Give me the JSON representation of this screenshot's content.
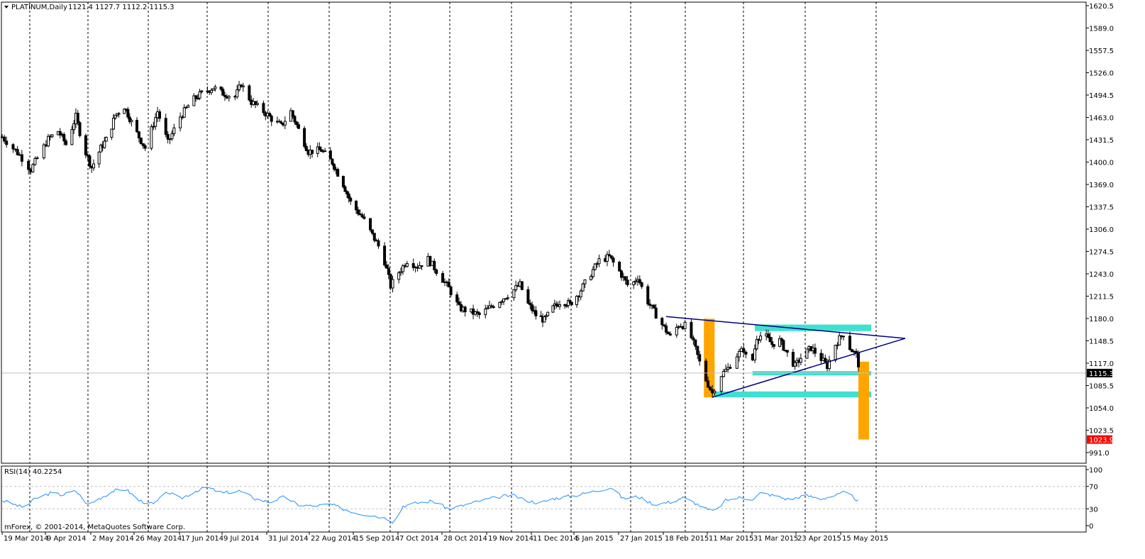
{
  "header": {
    "symbol_label": "PLATINUM,Daily",
    "ohlc_label": "1121.4 1127.7 1112.2 1115.3",
    "dropdown_icon": "triangle-down-icon"
  },
  "footer": {
    "copyright": "mForex, © 2001-2014, MetaQuotes Software Corp."
  },
  "colors": {
    "background": "#ffffff",
    "frame": "#000000",
    "candle": "#000000",
    "grid": "#000000",
    "trendline": "#000080",
    "horizontal_line": "#ff0000",
    "bid_line": "#c0c0c0",
    "zone_rect": "#40e0d0",
    "measure_bar": "#ffa500",
    "rsi_line": "#1e90ff",
    "rsi_level": "#c0c0c0",
    "price_tag": "#000000",
    "level_tag": "#ff0000"
  },
  "chart_data": [
    {
      "type": "candlestick",
      "title": "PLATINUM,Daily",
      "ylim": [
        991.0,
        1620.5
      ],
      "y_ticks": [
        "1620.5",
        "1589.0",
        "1557.5",
        "1526.0",
        "1494.5",
        "1463.0",
        "1431.5",
        "1400.0",
        "1369.0",
        "1337.5",
        "1306.0",
        "1274.5",
        "1243.0",
        "1211.5",
        "1180.0",
        "1148.5",
        "1117.0",
        "1085.5",
        "1054.0",
        "1023.5",
        "991.0"
      ],
      "x_ticks": [
        "19 Mar 2014",
        "9 Apr 2014",
        "2 May 2014",
        "26 May 2014",
        "17 Jun 2014",
        "9 Jul 2014",
        "31 Jul 2014",
        "22 Aug 2014",
        "15 Sep 2014",
        "7 Oct 2014",
        "28 Oct 2014",
        "19 Nov 2014",
        "11 Dec 2014",
        "5 Jan 2015",
        "27 Jan 2015",
        "18 Feb 2015",
        "11 Mar 2015",
        "31 Mar 2015",
        "23 Apr 2015",
        "15 May 2015"
      ],
      "grid": "vertical dashed",
      "last_price": 1115.3,
      "last_price_label": "1115.3",
      "horizontal_level": 1023.9,
      "horizontal_level_label": "1023.9",
      "close_path": [
        {
          "d": "19 Mar 2014",
          "c": 1440
        },
        {
          "d": "27 Mar 2014",
          "c": 1415
        },
        {
          "d": "1 Apr 2014",
          "c": 1395
        },
        {
          "d": "9 Apr 2014",
          "c": 1437
        },
        {
          "d": "14 Apr 2014",
          "c": 1448
        },
        {
          "d": "18 Apr 2014",
          "c": 1430
        },
        {
          "d": "23 Apr 2014",
          "c": 1468
        },
        {
          "d": "27 Apr 2014",
          "c": 1425
        },
        {
          "d": "1 May 2014",
          "c": 1398
        },
        {
          "d": "6 May 2014",
          "c": 1425
        },
        {
          "d": "10 May 2014",
          "c": 1440
        },
        {
          "d": "14 May 2014",
          "c": 1470
        },
        {
          "d": "19 May 2014",
          "c": 1482
        },
        {
          "d": "24 May 2014",
          "c": 1455
        },
        {
          "d": "30 May 2014",
          "c": 1425
        },
        {
          "d": "5 Jun 2014",
          "c": 1475
        },
        {
          "d": "10 Jun 2014",
          "c": 1432
        },
        {
          "d": "16 Jun 2014",
          "c": 1468
        },
        {
          "d": "22 Jun 2014",
          "c": 1490
        },
        {
          "d": "27 Jun 2014",
          "c": 1500
        },
        {
          "d": "3 Jul 2014",
          "c": 1508
        },
        {
          "d": "8 Jul 2014",
          "c": 1500
        },
        {
          "d": "14 Jul 2014",
          "c": 1495
        },
        {
          "d": "17 Jul 2014",
          "c": 1513
        },
        {
          "d": "22 Jul 2014",
          "c": 1488
        },
        {
          "d": "28 Jul 2014",
          "c": 1475
        },
        {
          "d": "1 Aug 2014",
          "c": 1465
        },
        {
          "d": "6 Aug 2014",
          "c": 1455
        },
        {
          "d": "11 Aug 2014",
          "c": 1475
        },
        {
          "d": "15 Aug 2014",
          "c": 1450
        },
        {
          "d": "20 Aug 2014",
          "c": 1420
        },
        {
          "d": "27 Aug 2014",
          "c": 1422
        },
        {
          "d": "2 Sep 2014",
          "c": 1405
        },
        {
          "d": "8 Sep 2014",
          "c": 1375
        },
        {
          "d": "12 Sep 2014",
          "c": 1350
        },
        {
          "d": "18 Sep 2014",
          "c": 1330
        },
        {
          "d": "23 Sep 2014",
          "c": 1305
        },
        {
          "d": "28 Sep 2014",
          "c": 1280
        },
        {
          "d": "2 Oct 2014",
          "c": 1235
        },
        {
          "d": "5 Oct 2014",
          "c": 1250
        },
        {
          "d": "10 Oct 2014",
          "c": 1270
        },
        {
          "d": "15 Oct 2014",
          "c": 1262
        },
        {
          "d": "20 Oct 2014",
          "c": 1272
        },
        {
          "d": "25 Oct 2014",
          "c": 1252
        },
        {
          "d": "30 Oct 2014",
          "c": 1232
        },
        {
          "d": "4 Nov 2014",
          "c": 1205
        },
        {
          "d": "9 Nov 2014",
          "c": 1200
        },
        {
          "d": "14 Nov 2014",
          "c": 1195
        },
        {
          "d": "19 Nov 2014",
          "c": 1205
        },
        {
          "d": "24 Nov 2014",
          "c": 1215
        },
        {
          "d": "29 Nov 2014",
          "c": 1225
        },
        {
          "d": "4 Dec 2014",
          "c": 1237
        },
        {
          "d": "8 Dec 2014",
          "c": 1210
        },
        {
          "d": "12 Dec 2014",
          "c": 1195
        },
        {
          "d": "17 Dec 2014",
          "c": 1188
        },
        {
          "d": "22 Dec 2014",
          "c": 1205
        },
        {
          "d": "27 Dec 2014",
          "c": 1215
        },
        {
          "d": "1 Jan 2015",
          "c": 1210
        },
        {
          "d": "6 Jan 2015",
          "c": 1225
        },
        {
          "d": "11 Jan 2015",
          "c": 1248
        },
        {
          "d": "16 Jan 2015",
          "c": 1270
        },
        {
          "d": "21 Jan 2015",
          "c": 1275
        },
        {
          "d": "26 Jan 2015",
          "c": 1255
        },
        {
          "d": "31 Jan 2015",
          "c": 1232
        },
        {
          "d": "4 Feb 2015",
          "c": 1248
        },
        {
          "d": "8 Feb 2015",
          "c": 1218
        },
        {
          "d": "12 Feb 2015",
          "c": 1200
        },
        {
          "d": "16 Feb 2015",
          "c": 1182
        },
        {
          "d": "20 Feb 2015",
          "c": 1165
        },
        {
          "d": "24 Feb 2015",
          "c": 1182
        },
        {
          "d": "28 Feb 2015",
          "c": 1180
        },
        {
          "d": "4 Mar 2015",
          "c": 1148
        },
        {
          "d": "8 Mar 2015",
          "c": 1112
        },
        {
          "d": "12 Mar 2015",
          "c": 1088
        },
        {
          "d": "15 Mar 2015",
          "c": 1110
        },
        {
          "d": "19 Mar 2015",
          "c": 1122
        },
        {
          "d": "23 Mar 2015",
          "c": 1140
        },
        {
          "d": "26 Mar 2015",
          "c": 1148
        },
        {
          "d": "29 Mar 2015",
          "c": 1118
        },
        {
          "d": "1 Apr 2015",
          "c": 1165
        },
        {
          "d": "5 Apr 2015",
          "c": 1168
        },
        {
          "d": "9 Apr 2015",
          "c": 1155
        },
        {
          "d": "13 Apr 2015",
          "c": 1160
        },
        {
          "d": "17 Apr 2015",
          "c": 1142
        },
        {
          "d": "21 Apr 2015",
          "c": 1125
        },
        {
          "d": "25 Apr 2015",
          "c": 1140
        },
        {
          "d": "29 Apr 2015",
          "c": 1150
        },
        {
          "d": "3 May 2015",
          "c": 1138
        },
        {
          "d": "7 May 2015",
          "c": 1125
        },
        {
          "d": "11 May 2015",
          "c": 1155
        },
        {
          "d": "15 May 2015",
          "c": 1170
        },
        {
          "d": "18 May 2015",
          "c": 1150
        },
        {
          "d": "21 May 2015",
          "c": 1140
        },
        {
          "d": "23 May 2015",
          "c": 1115.3
        }
      ],
      "trendlines": [
        {
          "from": {
            "d": "18 Feb 2015",
            "p": 1193
          },
          "to": {
            "d": "13 Jun 2015",
            "p": 1163
          }
        },
        {
          "from": {
            "d": "12 Mar 2015",
            "p": 1082
          },
          "to": {
            "d": "13 Jun 2015",
            "p": 1163
          }
        }
      ],
      "zones": [
        {
          "from_d": "31 Mar 2015",
          "to_d": "28 May 2015",
          "lo": 1173,
          "hi": 1182
        },
        {
          "from_d": "30 Mar 2015",
          "to_d": "28 May 2015",
          "lo": 1112,
          "hi": 1118
        },
        {
          "from_d": "12 Mar 2015",
          "to_d": "28 May 2015",
          "lo": 1082,
          "hi": 1090
        }
      ],
      "measure_bars": [
        {
          "from_d": "8 Mar 2015",
          "to_d": "13 Mar 2015",
          "lo": 1082,
          "hi": 1190
        },
        {
          "from_d": "22 May 2015",
          "to_d": "27 May 2015",
          "lo": 1023.9,
          "hi": 1131
        }
      ]
    },
    {
      "type": "line",
      "title": "RSI(14)",
      "label": "RSI(14) 40.2254",
      "ylim": [
        0,
        100
      ],
      "y_ticks": [
        "100",
        "70",
        "30",
        "0"
      ],
      "levels": [
        70,
        30
      ],
      "series": [
        {
          "name": "RSI(14)",
          "values": [
            {
              "d": "19 Mar 2014",
              "v": 45
            },
            {
              "d": "29 Mar 2014",
              "v": 32
            },
            {
              "d": "3 Apr 2014",
              "v": 48
            },
            {
              "d": "10 Apr 2014",
              "v": 58
            },
            {
              "d": "16 Apr 2014",
              "v": 55
            },
            {
              "d": "23 Apr 2014",
              "v": 62
            },
            {
              "d": "29 Apr 2014",
              "v": 38
            },
            {
              "d": "6 May 2014",
              "v": 50
            },
            {
              "d": "13 May 2014",
              "v": 62
            },
            {
              "d": "20 May 2014",
              "v": 65
            },
            {
              "d": "27 May 2014",
              "v": 45
            },
            {
              "d": "3 Jun 2014",
              "v": 38
            },
            {
              "d": "10 Jun 2014",
              "v": 60
            },
            {
              "d": "16 Jun 2014",
              "v": 48
            },
            {
              "d": "24 Jun 2014",
              "v": 62
            },
            {
              "d": "30 Jun 2014",
              "v": 68
            },
            {
              "d": "8 Jul 2014",
              "v": 58
            },
            {
              "d": "16 Jul 2014",
              "v": 62
            },
            {
              "d": "24 Jul 2014",
              "v": 48
            },
            {
              "d": "31 Jul 2014",
              "v": 42
            },
            {
              "d": "8 Aug 2014",
              "v": 52
            },
            {
              "d": "14 Aug 2014",
              "v": 38
            },
            {
              "d": "22 Aug 2014",
              "v": 35
            },
            {
              "d": "1 Sep 2014",
              "v": 38
            },
            {
              "d": "8 Sep 2014",
              "v": 30
            },
            {
              "d": "16 Sep 2014",
              "v": 22
            },
            {
              "d": "24 Sep 2014",
              "v": 18
            },
            {
              "d": "1 Oct 2014",
              "v": 12
            },
            {
              "d": "4 Oct 2014",
              "v": 5
            },
            {
              "d": "8 Oct 2014",
              "v": 35
            },
            {
              "d": "14 Oct 2014",
              "v": 40
            },
            {
              "d": "22 Oct 2014",
              "v": 44
            },
            {
              "d": "30 Oct 2014",
              "v": 30
            },
            {
              "d": "6 Nov 2014",
              "v": 36
            },
            {
              "d": "14 Nov 2014",
              "v": 44
            },
            {
              "d": "22 Nov 2014",
              "v": 50
            },
            {
              "d": "30 Nov 2014",
              "v": 55
            },
            {
              "d": "7 Dec 2014",
              "v": 45
            },
            {
              "d": "14 Dec 2014",
              "v": 40
            },
            {
              "d": "22 Dec 2014",
              "v": 48
            },
            {
              "d": "30 Dec 2014",
              "v": 52
            },
            {
              "d": "6 Jan 2015",
              "v": 55
            },
            {
              "d": "14 Jan 2015",
              "v": 62
            },
            {
              "d": "22 Jan 2015",
              "v": 68
            },
            {
              "d": "28 Jan 2015",
              "v": 48
            },
            {
              "d": "4 Feb 2015",
              "v": 52
            },
            {
              "d": "12 Feb 2015",
              "v": 38
            },
            {
              "d": "20 Feb 2015",
              "v": 42
            },
            {
              "d": "26 Feb 2015",
              "v": 50
            },
            {
              "d": "4 Mar 2015",
              "v": 40
            },
            {
              "d": "10 Mar 2015",
              "v": 28
            },
            {
              "d": "13 Mar 2015",
              "v": 26
            },
            {
              "d": "18 Mar 2015",
              "v": 45
            },
            {
              "d": "24 Mar 2015",
              "v": 50
            },
            {
              "d": "30 Mar 2015",
              "v": 48
            },
            {
              "d": "3 Apr 2015",
              "v": 58
            },
            {
              "d": "10 Apr 2015",
              "v": 54
            },
            {
              "d": "18 Apr 2015",
              "v": 46
            },
            {
              "d": "26 Apr 2015",
              "v": 54
            },
            {
              "d": "4 May 2015",
              "v": 48
            },
            {
              "d": "12 May 2015",
              "v": 55
            },
            {
              "d": "16 May 2015",
              "v": 60
            },
            {
              "d": "20 May 2015",
              "v": 50
            },
            {
              "d": "23 May 2015",
              "v": 40.2254
            }
          ]
        }
      ]
    }
  ]
}
